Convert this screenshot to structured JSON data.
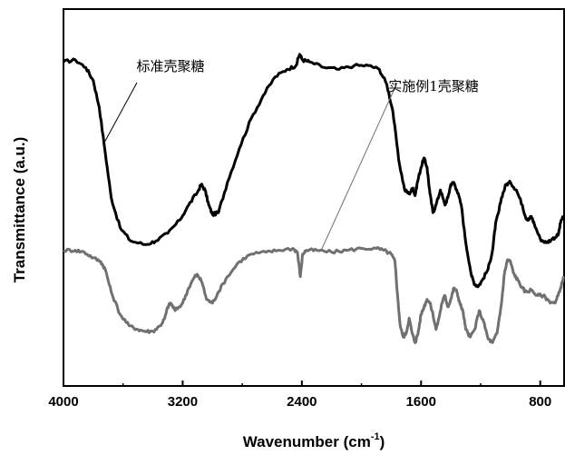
{
  "chart_data": {
    "type": "line",
    "title": "",
    "xlabel": "Wavenumber (cm",
    "xlabel_sup": "-1",
    "xlabel_close": ")",
    "ylabel": "Transmittance (a.u.)",
    "xlim": [
      4000,
      640
    ],
    "ylim": [
      0,
      100
    ],
    "x_reversed": true,
    "xticks": [
      4000,
      3200,
      2400,
      1600,
      800
    ],
    "grid": false,
    "series": [
      {
        "color": "#000000",
        "points": [
          [
            4000,
            86
          ],
          [
            3920,
            86.5
          ],
          [
            3850,
            84.5
          ],
          [
            3800,
            81
          ],
          [
            3760,
            74
          ],
          [
            3720,
            62
          ],
          [
            3680,
            50
          ],
          [
            3620,
            42
          ],
          [
            3550,
            38.5
          ],
          [
            3450,
            37.5
          ],
          [
            3380,
            38.5
          ],
          [
            3300,
            40.5
          ],
          [
            3220,
            44
          ],
          [
            3160,
            48
          ],
          [
            3100,
            51.5
          ],
          [
            3075,
            53.5
          ],
          [
            3050,
            52
          ],
          [
            3025,
            48
          ],
          [
            3000,
            45.5
          ],
          [
            2960,
            46
          ],
          [
            2900,
            54
          ],
          [
            2820,
            63
          ],
          [
            2740,
            71
          ],
          [
            2660,
            77
          ],
          [
            2580,
            82
          ],
          [
            2500,
            84
          ],
          [
            2440,
            85
          ],
          [
            2415,
            88
          ],
          [
            2395,
            86.5
          ],
          [
            2350,
            86
          ],
          [
            2250,
            84.5
          ],
          [
            2150,
            84
          ],
          [
            2050,
            85
          ],
          [
            1950,
            85
          ],
          [
            1880,
            84
          ],
          [
            1830,
            80
          ],
          [
            1790,
            73
          ],
          [
            1750,
            60
          ],
          [
            1710,
            52
          ],
          [
            1680,
            51
          ],
          [
            1655,
            52.5
          ],
          [
            1640,
            50.5
          ],
          [
            1625,
            54
          ],
          [
            1600,
            58
          ],
          [
            1580,
            60.5
          ],
          [
            1560,
            58
          ],
          [
            1540,
            51
          ],
          [
            1520,
            46
          ],
          [
            1500,
            48
          ],
          [
            1470,
            52
          ],
          [
            1440,
            48
          ],
          [
            1420,
            50
          ],
          [
            1400,
            53.5
          ],
          [
            1380,
            54
          ],
          [
            1360,
            52
          ],
          [
            1330,
            48
          ],
          [
            1300,
            38
          ],
          [
            1260,
            29
          ],
          [
            1240,
            27
          ],
          [
            1215,
            26.5
          ],
          [
            1190,
            28
          ],
          [
            1150,
            31
          ],
          [
            1120,
            36
          ],
          [
            1100,
            43
          ],
          [
            1080,
            46
          ],
          [
            1060,
            50
          ],
          [
            1030,
            53.5
          ],
          [
            1000,
            54
          ],
          [
            960,
            52
          ],
          [
            920,
            48
          ],
          [
            900,
            45
          ],
          [
            880,
            44
          ],
          [
            860,
            45
          ],
          [
            840,
            43
          ],
          [
            800,
            39
          ],
          [
            760,
            38
          ],
          [
            720,
            39
          ],
          [
            680,
            40
          ],
          [
            660,
            44
          ],
          [
            640,
            45
          ]
        ]
      },
      {
        "color": "#707070",
        "points": [
          [
            4000,
            36
          ],
          [
            3920,
            36
          ],
          [
            3860,
            35.5
          ],
          [
            3800,
            34
          ],
          [
            3750,
            33
          ],
          [
            3720,
            31
          ],
          [
            3680,
            25
          ],
          [
            3620,
            19
          ],
          [
            3560,
            16
          ],
          [
            3500,
            15
          ],
          [
            3450,
            14.5
          ],
          [
            3400,
            14.5
          ],
          [
            3350,
            16
          ],
          [
            3320,
            18
          ],
          [
            3300,
            21
          ],
          [
            3280,
            22
          ],
          [
            3250,
            20
          ],
          [
            3200,
            22
          ],
          [
            3160,
            26
          ],
          [
            3120,
            29
          ],
          [
            3100,
            29.5
          ],
          [
            3070,
            27.5
          ],
          [
            3040,
            23
          ],
          [
            3000,
            22
          ],
          [
            2960,
            25
          ],
          [
            2900,
            29
          ],
          [
            2820,
            33
          ],
          [
            2740,
            35
          ],
          [
            2640,
            35.5
          ],
          [
            2560,
            36
          ],
          [
            2460,
            36.5
          ],
          [
            2430,
            35.5
          ],
          [
            2410,
            29
          ],
          [
            2395,
            35
          ],
          [
            2370,
            36
          ],
          [
            2300,
            36
          ],
          [
            2200,
            35.5
          ],
          [
            2100,
            36
          ],
          [
            2000,
            36.5
          ],
          [
            1900,
            36.5
          ],
          [
            1850,
            36
          ],
          [
            1800,
            35
          ],
          [
            1775,
            33
          ],
          [
            1760,
            25
          ],
          [
            1740,
            16
          ],
          [
            1720,
            13
          ],
          [
            1700,
            14
          ],
          [
            1680,
            18
          ],
          [
            1660,
            14
          ],
          [
            1640,
            11.5
          ],
          [
            1620,
            14
          ],
          [
            1600,
            19
          ],
          [
            1580,
            21
          ],
          [
            1560,
            23
          ],
          [
            1540,
            22
          ],
          [
            1520,
            19
          ],
          [
            1500,
            15
          ],
          [
            1480,
            18
          ],
          [
            1460,
            22
          ],
          [
            1440,
            24
          ],
          [
            1420,
            21
          ],
          [
            1400,
            23
          ],
          [
            1380,
            26
          ],
          [
            1360,
            25
          ],
          [
            1340,
            22
          ],
          [
            1320,
            20
          ],
          [
            1300,
            15
          ],
          [
            1270,
            13
          ],
          [
            1240,
            15
          ],
          [
            1210,
            20
          ],
          [
            1180,
            17
          ],
          [
            1150,
            12.5
          ],
          [
            1120,
            11.5
          ],
          [
            1090,
            14
          ],
          [
            1060,
            22
          ],
          [
            1040,
            30
          ],
          [
            1020,
            33.5
          ],
          [
            1000,
            33
          ],
          [
            980,
            30
          ],
          [
            950,
            28
          ],
          [
            920,
            26
          ],
          [
            900,
            25
          ],
          [
            860,
            25.5
          ],
          [
            820,
            24
          ],
          [
            780,
            24
          ],
          [
            740,
            22.5
          ],
          [
            700,
            22
          ],
          [
            670,
            25
          ],
          [
            650,
            28
          ],
          [
            640,
            29
          ]
        ]
      }
    ],
    "annotations": [
      {
        "text": "标准壳聚糖",
        "series_index": 0,
        "target": [
          3720,
          65
        ]
      },
      {
        "text": "实施例1壳聚糖",
        "series_index": 1,
        "target": [
          2270,
          36
        ]
      }
    ]
  }
}
